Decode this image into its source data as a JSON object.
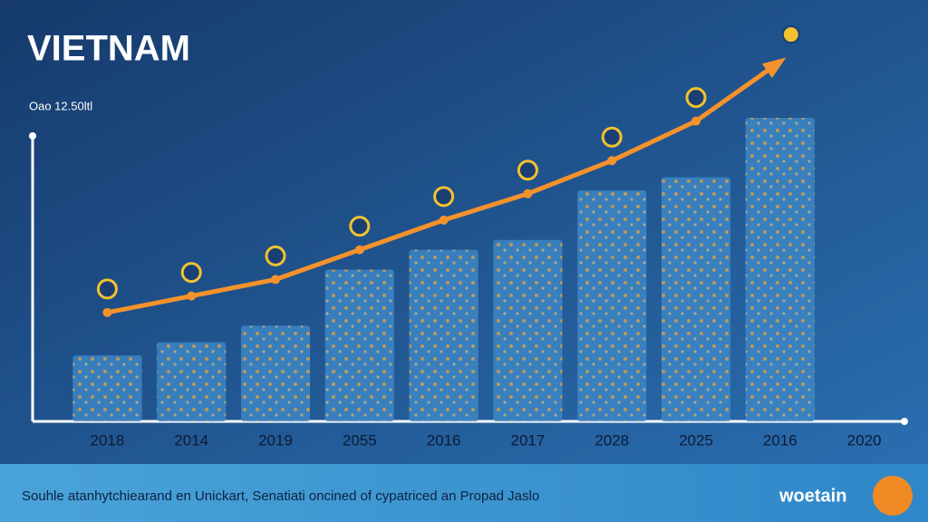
{
  "chart_data": {
    "type": "bar_line",
    "title": "VIETNAM",
    "subtitle": "Oao 12.50ltl",
    "categories": [
      "2018",
      "2014",
      "2019",
      "2055",
      "2016",
      "2017",
      "2028",
      "2025",
      "2016",
      "2020"
    ],
    "series": [
      {
        "type": "bar",
        "color": "#3d86c6",
        "values": [
          20,
          24,
          29,
          46,
          52,
          55,
          70,
          74,
          92,
          null
        ]
      },
      {
        "type": "line",
        "color": "#f5922b",
        "values": [
          33,
          38,
          43,
          52,
          61,
          69,
          79,
          91,
          109,
          null
        ]
      }
    ],
    "ylim": [
      0,
      120
    ],
    "footer": "Souhle atanhytchiearand en Unickart, Senatiati oncined of cypatriced an Propad Jaslo",
    "logo": "woetain"
  }
}
